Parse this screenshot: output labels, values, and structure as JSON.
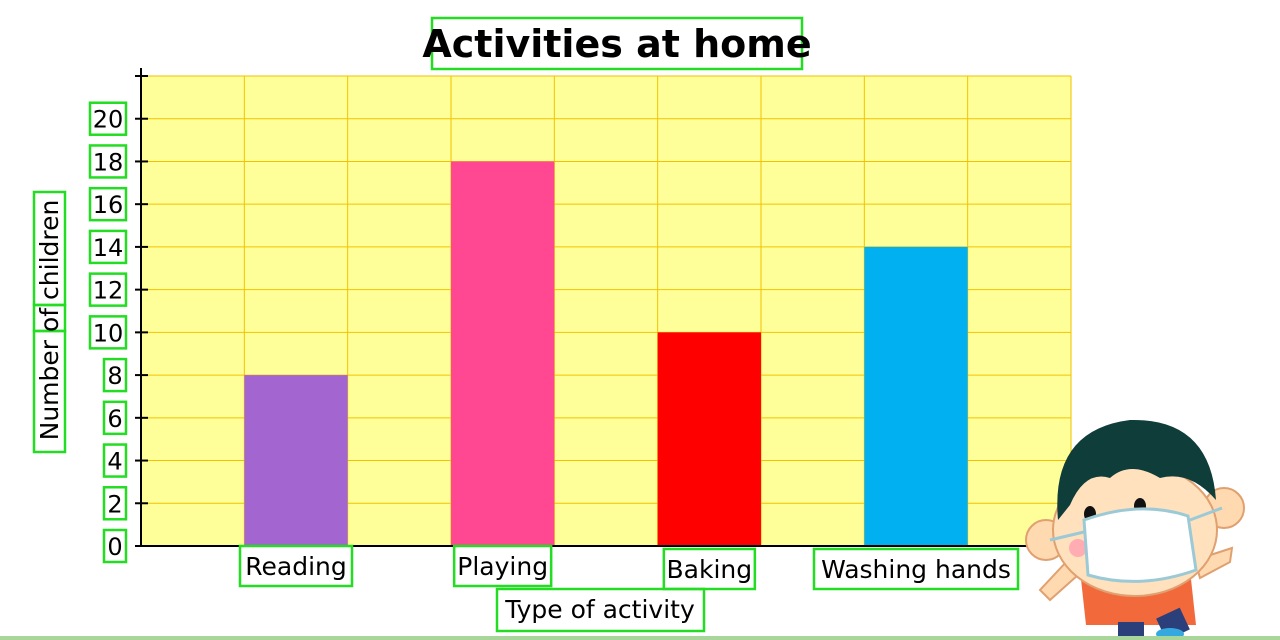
{
  "chart_data": {
    "type": "bar",
    "title": "Activities at home",
    "xlabel": "Type of activity",
    "ylabel": "Number of children",
    "categories": [
      "Reading",
      "Playing",
      "Baking",
      "Washing hands"
    ],
    "values": [
      8,
      18,
      10,
      14
    ],
    "bar_colors": [
      "#a366d1",
      "#ff4891",
      "#ff0000",
      "#00b0f0"
    ],
    "ylim": [
      0,
      22
    ],
    "yticks": [
      0,
      2,
      4,
      6,
      8,
      10,
      12,
      14,
      16,
      18,
      20
    ],
    "grid": true,
    "plot_background": "#ffff99",
    "grid_color": "#f2c200",
    "legend": "none"
  },
  "decoration": {
    "icon": "child-wearing-mask-icon"
  }
}
